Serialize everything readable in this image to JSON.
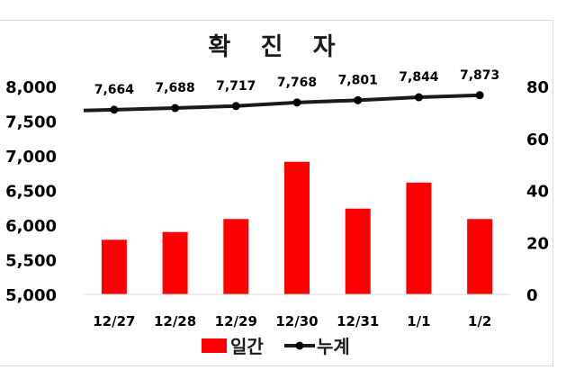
{
  "chart_data": {
    "type": "bar",
    "title": "확 진 자",
    "categories": [
      "12/27",
      "12/28",
      "12/29",
      "12/30",
      "12/31",
      "1/1",
      "1/2"
    ],
    "series": [
      {
        "name": "일간",
        "type": "bar",
        "axis": "right",
        "color": "#ff0000",
        "values": [
          21,
          24,
          29,
          51,
          33,
          43,
          29
        ]
      },
      {
        "name": "누계",
        "type": "line",
        "axis": "left",
        "color": "#1a1a1a",
        "values": [
          7664,
          7688,
          7717,
          7768,
          7801,
          7844,
          7873
        ],
        "data_labels": [
          "7,664",
          "7,688",
          "7,717",
          "7,768",
          "7,801",
          "7,844",
          "7,873"
        ]
      }
    ],
    "y_left": {
      "min": 5000,
      "max": 8000,
      "ticks": [
        "5,000",
        "5,500",
        "6,000",
        "6,500",
        "7,000",
        "7,500",
        "8,000"
      ]
    },
    "y_right": {
      "min": 0,
      "max": 80,
      "ticks": [
        "0",
        "20",
        "40",
        "60",
        "80"
      ]
    },
    "grid": false,
    "legend_position": "bottom"
  }
}
